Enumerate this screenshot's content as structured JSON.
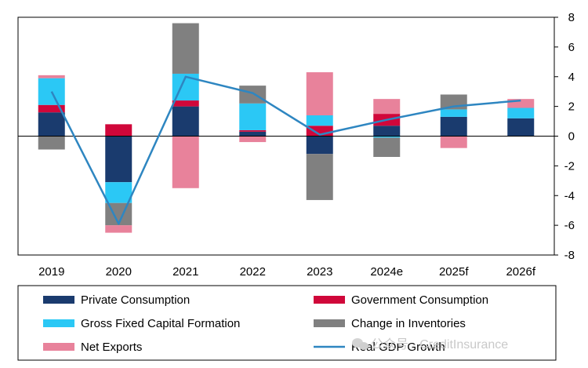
{
  "chart_data": {
    "type": "bar",
    "stacked": true,
    "categories": [
      "2019",
      "2020",
      "2021",
      "2022",
      "2023",
      "2024e",
      "2025f",
      "2026f"
    ],
    "ylim": [
      -8,
      8
    ],
    "yticks": [
      "8",
      "6",
      "4",
      "2",
      "0",
      "-2",
      "-4",
      "-6",
      "-8"
    ],
    "y_axis_side": "right",
    "grid": false,
    "legend_position": "bottom",
    "series": [
      {
        "name": "Private Consumption",
        "kind": "bar",
        "color": "#1a3b6e",
        "values": [
          1.6,
          -3.1,
          2.0,
          0.3,
          -1.2,
          0.7,
          1.3,
          1.2
        ]
      },
      {
        "name": "Government Consumption",
        "kind": "bar",
        "color": "#d0073a",
        "values": [
          0.5,
          0.8,
          0.4,
          0.1,
          0.7,
          0.8,
          0.0,
          0.0
        ]
      },
      {
        "name": "Gross Fixed Capital Formation",
        "kind": "bar",
        "color": "#2bc8f5",
        "values": [
          1.8,
          -1.4,
          1.8,
          1.8,
          0.7,
          -0.1,
          0.5,
          0.7
        ]
      },
      {
        "name": "Change in Inventories",
        "kind": "bar",
        "color": "#808080",
        "values": [
          -0.9,
          -1.5,
          3.4,
          1.2,
          -3.1,
          -1.3,
          1.0,
          0.0
        ]
      },
      {
        "name": "Net Exports",
        "kind": "bar",
        "color": "#e8829b",
        "values": [
          0.2,
          -0.5,
          -3.5,
          -0.4,
          2.9,
          1.0,
          -0.8,
          0.6
        ]
      },
      {
        "name": "Real GDP Growth",
        "kind": "line",
        "color": "#2e86c1",
        "values": [
          3.0,
          -5.9,
          4.0,
          2.9,
          0.1,
          1.1,
          2.0,
          2.4
        ]
      }
    ]
  },
  "watermark": "公众号 · CreditInsurance",
  "watermark_icon": "wechat-icon"
}
